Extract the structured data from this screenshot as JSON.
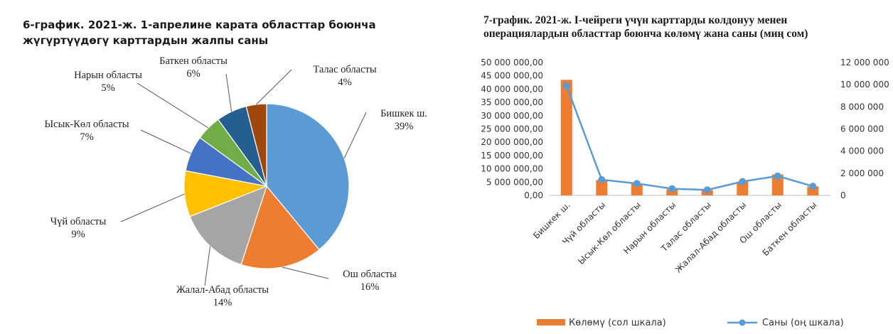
{
  "chart_data": [
    {
      "type": "pie",
      "title": [
        "6-график. 2021-ж. 1-апрелине карата областтар боюнча",
        "жүгүртүүдөгү карттардын  жалпы саны"
      ],
      "slices": [
        {
          "name": "Бишкек ш.",
          "value": 39,
          "label": "39%",
          "color": "#5b9bd5"
        },
        {
          "name": "Ош областы",
          "value": 16,
          "label": "16%",
          "color": "#ed7d31"
        },
        {
          "name": "Жалал-Абад областы",
          "value": 14,
          "label": "14%",
          "color": "#a5a5a5"
        },
        {
          "name": "Чүй областы",
          "value": 9,
          "label": "9%",
          "color": "#ffc000"
        },
        {
          "name": "Ысык-Көл областы",
          "value": 7,
          "label": "7%",
          "color": "#4472c4"
        },
        {
          "name": "Нарын областы",
          "value": 5,
          "label": "5%",
          "color": "#70ad47"
        },
        {
          "name": "Баткен областы",
          "value": 6,
          "label": "6%",
          "color": "#255e91"
        },
        {
          "name": "Талас областы",
          "value": 4,
          "label": "4%",
          "color": "#9e480e"
        }
      ]
    },
    {
      "type": "bar+line",
      "title": [
        "7-график. 2021-ж. I-чейреги үчүн карттарды  колдонуу менен",
        "операциялардын областтар боюнча көлөмү жана саны (миң сом)"
      ],
      "categories": [
        "Бишкек ш.",
        "Чүй областы",
        "Ысык-Көл областы",
        "Нарын областы",
        "Талас областы",
        "Жалал-Абад областы",
        "Ош областы",
        "Баткен областы"
      ],
      "left_axis": {
        "min": 0,
        "max": 50000000,
        "step": 5000000,
        "tick_labels": [
          "0,00",
          "5 000 000,00",
          "10 000 000,00",
          "15 000 000,00",
          "20 000 000,00",
          "25 000 000,00",
          "30 000 000,00",
          "35 000 000,00",
          "40 000 000,00",
          "45 000 000,00",
          "50 000 000,00"
        ]
      },
      "right_axis": {
        "min": 0,
        "max": 12000000,
        "step": 2000000,
        "tick_labels": [
          "0",
          "2 000 000",
          "4 000 000",
          "6 000 000",
          "8 000 000",
          "10 000 000",
          "12 000 000"
        ]
      },
      "series": [
        {
          "name": "Көлөмү (сол шкала)",
          "kind": "bar",
          "axis": "left",
          "color": "#ed7d31",
          "values": [
            43500000,
            5800000,
            4400000,
            2300000,
            2000000,
            5200000,
            7900000,
            3400000
          ]
        },
        {
          "name": "Саны (оң шкала)",
          "kind": "line",
          "axis": "right",
          "color": "#5b9bd5",
          "values": [
            9900000,
            1420000,
            1080000,
            600000,
            500000,
            1250000,
            1750000,
            830000
          ]
        }
      ],
      "legend_position": "bottom"
    }
  ]
}
